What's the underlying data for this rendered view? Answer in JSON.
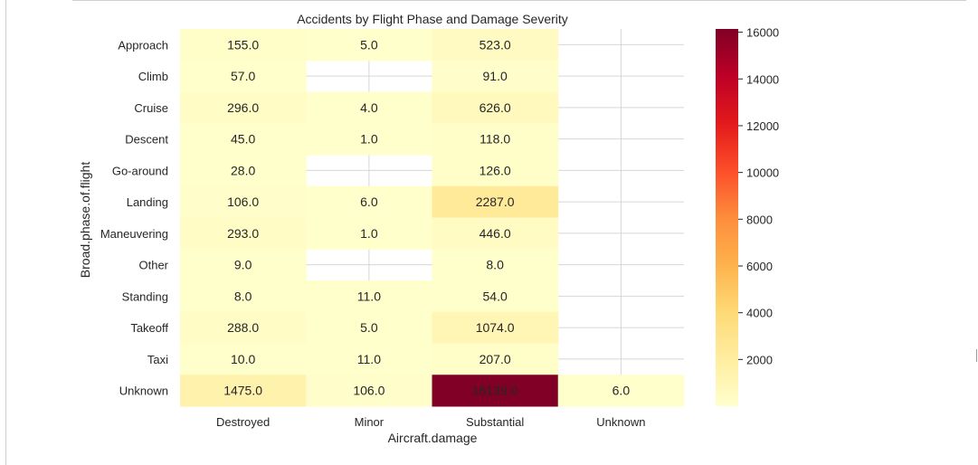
{
  "chart_data": {
    "type": "heatmap",
    "title": "Accidents by Flight Phase and Damage Severity",
    "xlabel": "Aircraft.damage",
    "ylabel": "Broad.phase.of.flight",
    "x_categories": [
      "Destroyed",
      "Minor",
      "Substantial",
      "Unknown"
    ],
    "y_categories": [
      "Approach",
      "Climb",
      "Cruise",
      "Descent",
      "Go-around",
      "Landing",
      "Maneuvering",
      "Other",
      "Standing",
      "Takeoff",
      "Taxi",
      "Unknown"
    ],
    "values": [
      [
        155.0,
        5.0,
        523.0,
        null
      ],
      [
        57.0,
        null,
        91.0,
        null
      ],
      [
        296.0,
        4.0,
        626.0,
        null
      ],
      [
        45.0,
        1.0,
        118.0,
        null
      ],
      [
        28.0,
        null,
        126.0,
        null
      ],
      [
        106.0,
        6.0,
        2287.0,
        null
      ],
      [
        293.0,
        1.0,
        446.0,
        null
      ],
      [
        9.0,
        null,
        8.0,
        null
      ],
      [
        8.0,
        11.0,
        54.0,
        null
      ],
      [
        288.0,
        5.0,
        1074.0,
        null
      ],
      [
        10.0,
        11.0,
        207.0,
        null
      ],
      [
        1475.0,
        106.0,
        16139.0,
        6.0
      ]
    ],
    "value_format": "1 decimal",
    "colormap": "YlOrRd",
    "color_range": [
      1,
      16139
    ],
    "colorbar_ticks": [
      2000,
      4000,
      6000,
      8000,
      10000,
      12000,
      14000,
      16000
    ],
    "missing_cells": "blank with grid showing",
    "grid": true
  }
}
